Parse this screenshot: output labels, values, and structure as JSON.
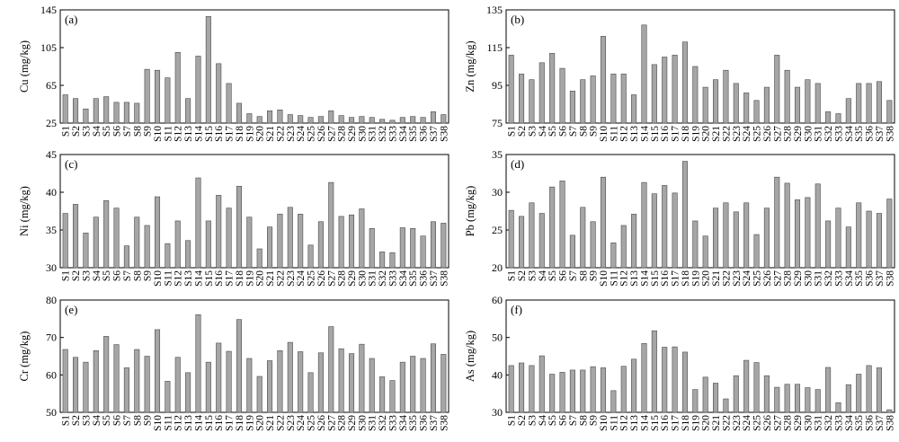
{
  "chart_data": [
    {
      "type": "bar",
      "panel_label": "(a)",
      "ylabel": "Cu (mg/kg)",
      "ylim": [
        25,
        145
      ],
      "yticks": [
        25,
        65,
        105,
        145
      ],
      "categories": [
        "S1",
        "S2",
        "S3",
        "S4",
        "S5",
        "S6",
        "S7",
        "S8",
        "S9",
        "S10",
        "S11",
        "S12",
        "S13",
        "S14",
        "S15",
        "S16",
        "S17",
        "S18",
        "S19",
        "S20",
        "S21",
        "S22",
        "S23",
        "S24",
        "S25",
        "S26",
        "S27",
        "S28",
        "S29",
        "S30",
        "S31",
        "S32",
        "S33",
        "S34",
        "S35",
        "S36",
        "S37",
        "S38"
      ],
      "values": [
        55,
        51,
        40,
        51,
        53,
        47,
        47,
        46,
        82,
        81,
        73,
        100,
        51,
        96,
        138,
        88,
        67,
        46,
        35,
        32,
        38,
        39,
        34,
        33,
        31,
        32,
        38,
        33,
        31,
        32,
        31,
        29,
        28,
        31,
        32,
        31,
        37,
        34
      ]
    },
    {
      "type": "bar",
      "panel_label": "(b)",
      "ylabel": "Zn (mg/kg)",
      "ylim": [
        75,
        135
      ],
      "yticks": [
        75,
        95,
        115,
        135
      ],
      "categories": [
        "S1",
        "S2",
        "S3",
        "S4",
        "S5",
        "S6",
        "S7",
        "S8",
        "S9",
        "S10",
        "S11",
        "S12",
        "S13",
        "S14",
        "S15",
        "S16",
        "S17",
        "S18",
        "S19",
        "S20",
        "S21",
        "S22",
        "S23",
        "S24",
        "S25",
        "S26",
        "S27",
        "S28",
        "S29",
        "S30",
        "S31",
        "S32",
        "S33",
        "S34",
        "S35",
        "S36",
        "S37",
        "S38"
      ],
      "values": [
        111,
        101,
        98,
        107,
        112,
        104,
        92,
        98,
        100,
        121,
        101,
        101,
        90,
        127,
        106,
        110,
        111,
        118,
        105,
        94,
        98,
        103,
        96,
        91,
        87,
        94,
        111,
        103,
        94,
        98,
        96,
        81,
        80,
        88,
        96,
        96,
        97,
        87
      ]
    },
    {
      "type": "bar",
      "panel_label": "(c)",
      "ylabel": "Ni (mg/kg)",
      "ylim": [
        30,
        45
      ],
      "yticks": [
        30,
        35,
        40,
        45
      ],
      "categories": [
        "S1",
        "S2",
        "S3",
        "S4",
        "S5",
        "S6",
        "S7",
        "S8",
        "S9",
        "S10",
        "S11",
        "S12",
        "S13",
        "S14",
        "S15",
        "S16",
        "S17",
        "S18",
        "S19",
        "S20",
        "S21",
        "S22",
        "S23",
        "S24",
        "S25",
        "S26",
        "S27",
        "S28",
        "S29",
        "S30",
        "S31",
        "S32",
        "S33",
        "S34",
        "S35",
        "S36",
        "S37",
        "S38"
      ],
      "values": [
        37.2,
        38.4,
        34.6,
        36.7,
        38.9,
        37.9,
        32.9,
        36.7,
        35.6,
        39.4,
        33.2,
        36.2,
        33.6,
        41.9,
        36.2,
        39.6,
        37.9,
        40.8,
        36.7,
        32.5,
        35.4,
        37.1,
        38.0,
        37.1,
        33.0,
        36.1,
        41.3,
        36.8,
        37.0,
        37.8,
        35.2,
        32.1,
        32.0,
        35.3,
        35.2,
        34.2,
        36.1,
        35.9
      ]
    },
    {
      "type": "bar",
      "panel_label": "(d)",
      "ylabel": "Pb (mg/kg)",
      "ylim": [
        20,
        35
      ],
      "yticks": [
        20,
        25,
        30,
        35
      ],
      "categories": [
        "S1",
        "S2",
        "S3",
        "S4",
        "S5",
        "S6",
        "S7",
        "S8",
        "S9",
        "S10",
        "S11",
        "S12",
        "S13",
        "S14",
        "S15",
        "S16",
        "S17",
        "S18",
        "S19",
        "S20",
        "S21",
        "S22",
        "S23",
        "S24",
        "S25",
        "S26",
        "S27",
        "S28",
        "S29",
        "S30",
        "S31",
        "S32",
        "S33",
        "S34",
        "S35",
        "S36",
        "S37",
        "S38"
      ],
      "values": [
        27.6,
        26.8,
        28.6,
        27.2,
        30.7,
        31.5,
        24.3,
        28.0,
        26.1,
        32.0,
        23.3,
        25.6,
        27.1,
        31.3,
        29.8,
        30.9,
        29.9,
        34.1,
        26.2,
        24.2,
        27.9,
        28.6,
        27.4,
        28.6,
        24.4,
        27.9,
        32.0,
        31.2,
        29.0,
        29.3,
        31.1,
        26.2,
        27.9,
        25.4,
        28.6,
        27.5,
        27.2,
        29.1
      ]
    },
    {
      "type": "bar",
      "panel_label": "(e)",
      "ylabel": "Cr (mg/kg)",
      "ylim": [
        50,
        80
      ],
      "yticks": [
        50,
        60,
        70,
        80
      ],
      "categories": [
        "S1",
        "S2",
        "S3",
        "S4",
        "S5",
        "S6",
        "S7",
        "S8",
        "S9",
        "S10",
        "S11",
        "S12",
        "S13",
        "S14",
        "S15",
        "S16",
        "S17",
        "S18",
        "S19",
        "S20",
        "S21",
        "S22",
        "S23",
        "S24",
        "S25",
        "S26",
        "S27",
        "S28",
        "S29",
        "S30",
        "S31",
        "S32",
        "S33",
        "S34",
        "S35",
        "S36",
        "S37",
        "S38"
      ],
      "values": [
        66.8,
        64.7,
        63.4,
        66.5,
        70.3,
        68.1,
        61.9,
        66.8,
        65.0,
        72.1,
        58.3,
        64.7,
        60.6,
        76.1,
        63.4,
        68.5,
        66.3,
        74.8,
        64.4,
        59.6,
        63.8,
        66.5,
        68.7,
        66.2,
        60.6,
        65.9,
        72.9,
        67.0,
        65.7,
        68.2,
        64.4,
        59.5,
        58.5,
        63.4,
        65.0,
        64.4,
        68.3,
        65.5
      ]
    },
    {
      "type": "bar",
      "panel_label": "(f)",
      "ylabel": "As (mg/kg)",
      "ylim": [
        30,
        60
      ],
      "yticks": [
        30,
        40,
        50,
        60
      ],
      "categories": [
        "S1",
        "S2",
        "S3",
        "S4",
        "S5",
        "S6",
        "S7",
        "S8",
        "S9",
        "S10",
        "S11",
        "S12",
        "S13",
        "S14",
        "S15",
        "S16",
        "S17",
        "S18",
        "S19",
        "S20",
        "S21",
        "S22",
        "S23",
        "S24",
        "S25",
        "S26",
        "S27",
        "S28",
        "S29",
        "S30",
        "S31",
        "S32",
        "S33",
        "S34",
        "S35",
        "S36",
        "S37",
        "S38"
      ],
      "values": [
        42.5,
        43.2,
        42.5,
        45.1,
        40.2,
        40.7,
        41.3,
        41.3,
        42.2,
        41.9,
        35.8,
        42.3,
        44.2,
        48.4,
        51.8,
        47.4,
        47.5,
        46.1,
        36.1,
        39.4,
        37.8,
        33.6,
        39.8,
        43.9,
        43.3,
        39.8,
        36.7,
        37.5,
        37.5,
        36.6,
        36.1,
        42.0,
        32.6,
        37.4,
        40.2,
        42.5,
        41.9,
        30.7
      ]
    }
  ]
}
